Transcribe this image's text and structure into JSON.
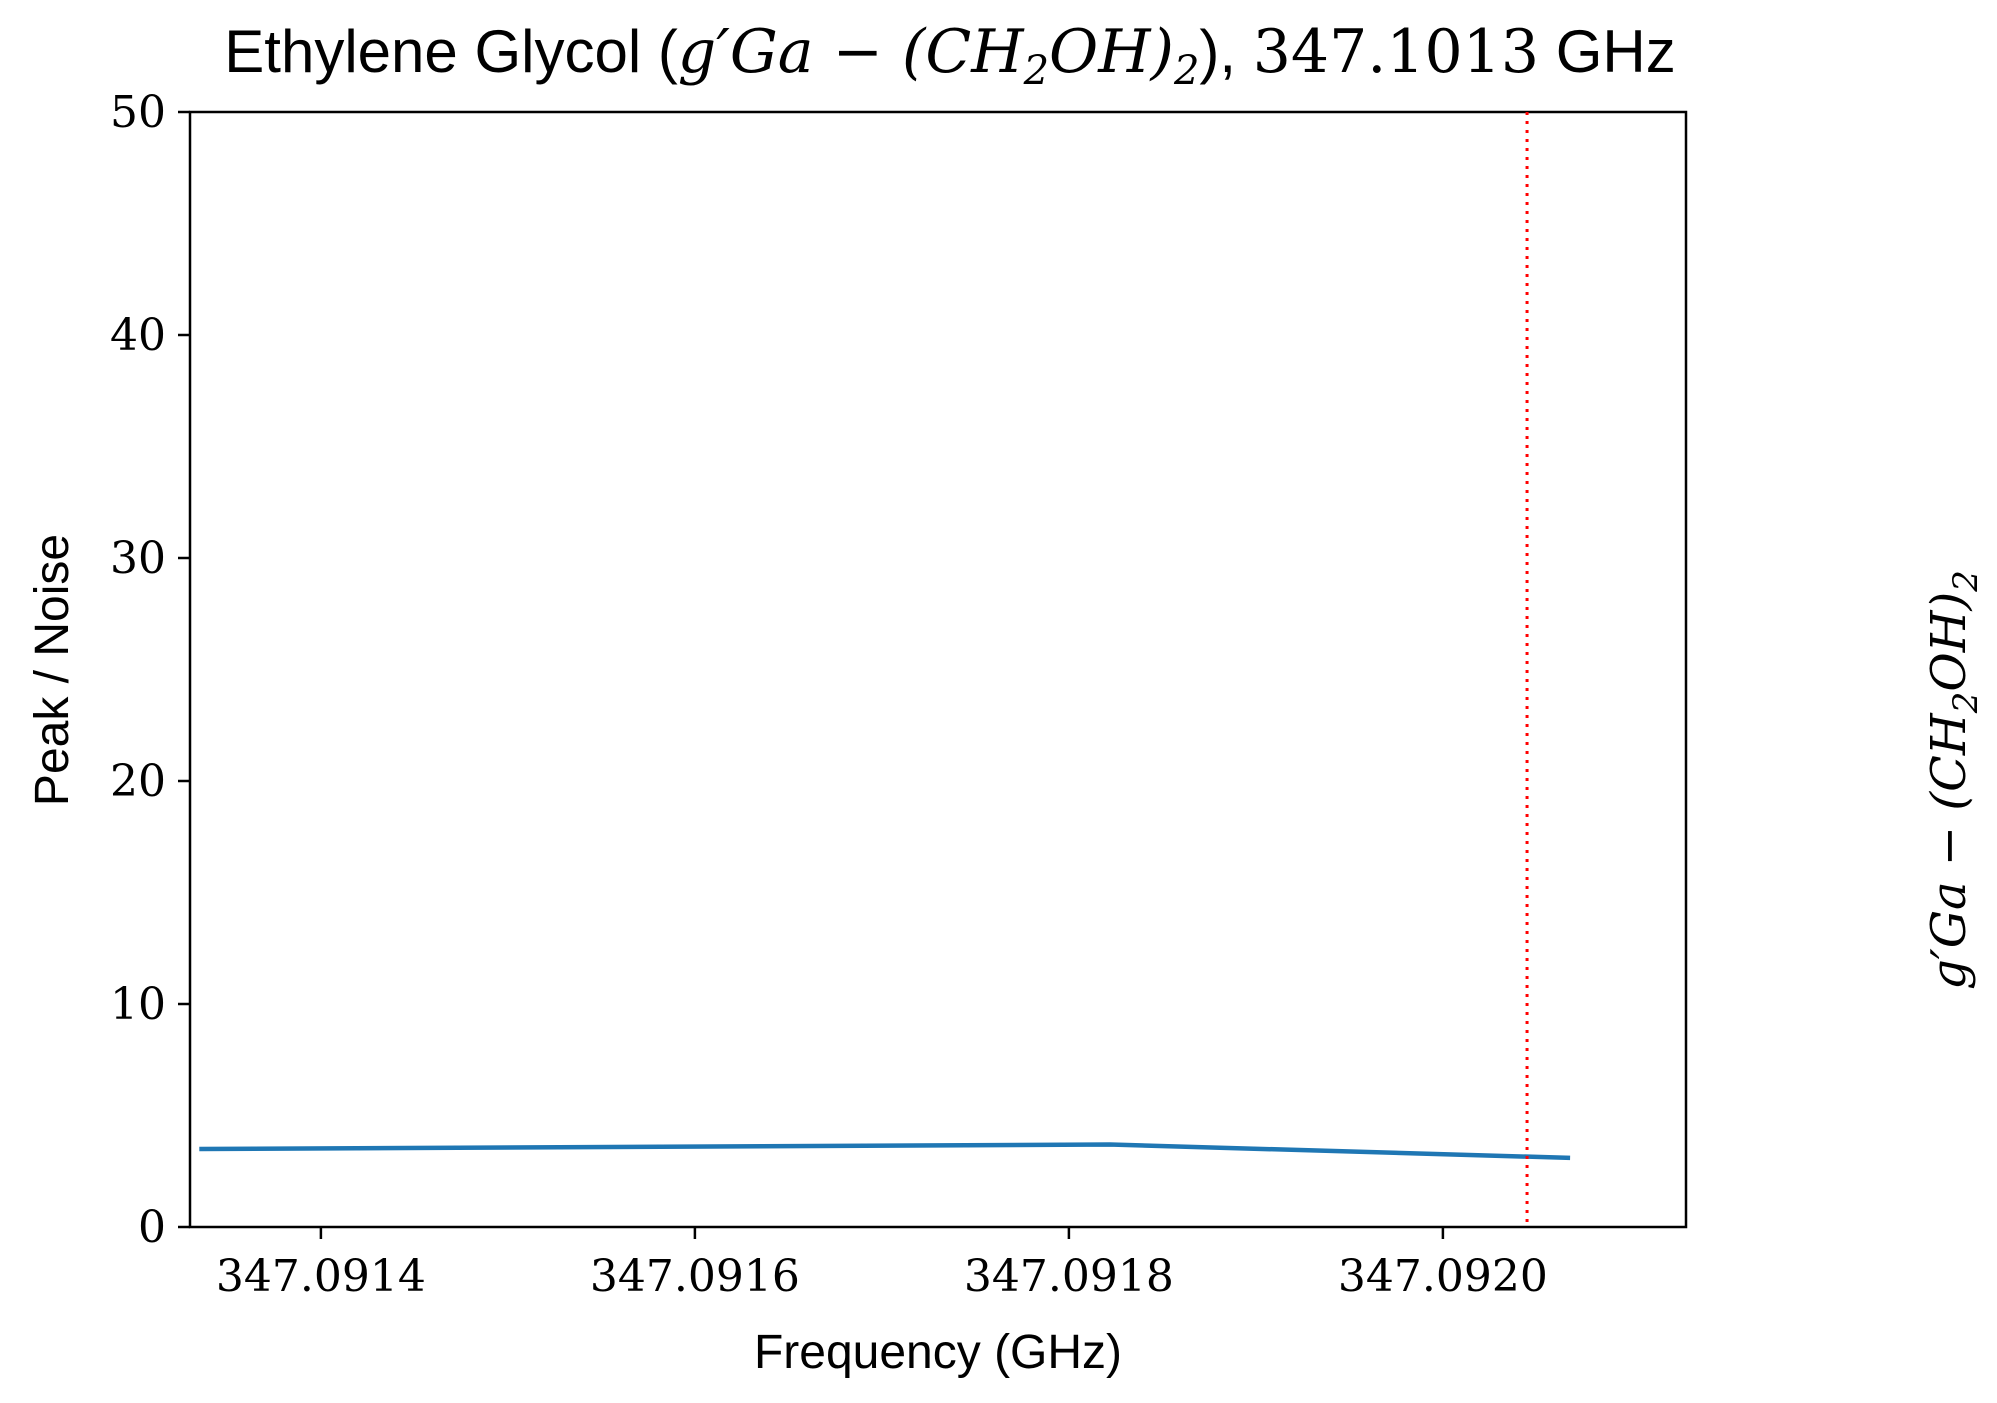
{
  "chart_data": {
    "type": "line",
    "title": {
      "prefix": "Ethylene Glycol (",
      "formula_a": "g′Ga − (CH",
      "formula_sub": "2",
      "formula_b": "OH)",
      "formula_sub2": "2",
      "suffix": "), ",
      "frequency_value": "347.1013",
      "frequency_unit": " GHz"
    },
    "xlabel": "Frequency (GHz)",
    "ylabel": "Peak / Noise",
    "side_label": {
      "a": "g′Ga − (CH",
      "sub": "2",
      "b": "OH)",
      "sub2": "2"
    },
    "xlim": [
      347.09133,
      347.09213
    ],
    "ylim": [
      0,
      50
    ],
    "xticks": [
      347.0914,
      347.0916,
      347.0918,
      347.092
    ],
    "xtick_labels": [
      "347.0914",
      "347.0916",
      "347.0918",
      "347.0920"
    ],
    "yticks": [
      0,
      10,
      20,
      30,
      40,
      50
    ],
    "ytick_labels": [
      "0",
      "10",
      "20",
      "30",
      "40",
      "50"
    ],
    "grid": false,
    "series": [
      {
        "color": "#1f77b4",
        "x": [
          347.091335,
          347.091822,
          347.092068
        ],
        "y": [
          3.5,
          3.7,
          3.1
        ]
      }
    ],
    "vline": {
      "x": 347.092045,
      "color": "#ff0000",
      "style": "dotted"
    }
  }
}
